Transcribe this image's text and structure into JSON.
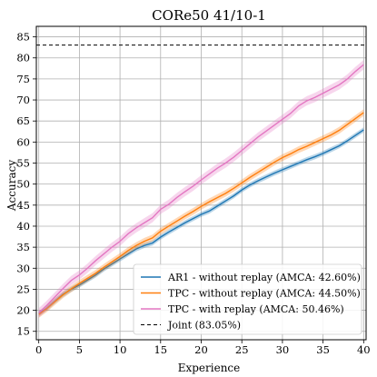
{
  "chart_data": {
    "type": "line",
    "title": "CORe50 41/10-1",
    "xlabel": "Experience",
    "ylabel": "Accuracy",
    "xlim": [
      -0.3,
      40.3
    ],
    "ylim": [
      13,
      87.5
    ],
    "xticks": [
      0,
      5,
      10,
      15,
      20,
      25,
      30,
      35,
      40
    ],
    "yticks": [
      15,
      20,
      25,
      30,
      35,
      40,
      45,
      50,
      55,
      60,
      65,
      70,
      75,
      80,
      85
    ],
    "grid": true,
    "legend_position": "lower-right",
    "series": [
      {
        "name": "AR1 - without replay (AMCA: 42.60%)",
        "color": "#1f77b4",
        "band": 0.6,
        "x": [
          0,
          1,
          2,
          3,
          4,
          5,
          6,
          7,
          8,
          9,
          10,
          11,
          12,
          13,
          14,
          15,
          16,
          17,
          18,
          19,
          20,
          21,
          22,
          23,
          24,
          25,
          26,
          27,
          28,
          29,
          30,
          31,
          32,
          33,
          34,
          35,
          36,
          37,
          38,
          39,
          40
        ],
        "y": [
          19.2,
          20.5,
          22.2,
          23.8,
          25.0,
          26.0,
          27.2,
          28.4,
          29.8,
          31.0,
          32.2,
          33.4,
          34.6,
          35.4,
          36.0,
          37.4,
          38.6,
          39.7,
          40.8,
          41.8,
          42.8,
          43.6,
          44.8,
          46.0,
          47.2,
          48.6,
          49.8,
          50.8,
          51.7,
          52.6,
          53.4,
          54.2,
          55.0,
          55.8,
          56.5,
          57.3,
          58.2,
          59.1,
          60.3,
          61.6,
          62.9
        ]
      },
      {
        "name": "TPC - without replay (AMCA: 44.50%)",
        "color": "#ff7f0e",
        "band": 0.8,
        "x": [
          0,
          1,
          2,
          3,
          4,
          5,
          6,
          7,
          8,
          9,
          10,
          11,
          12,
          13,
          14,
          15,
          16,
          17,
          18,
          19,
          20,
          21,
          22,
          23,
          24,
          25,
          26,
          27,
          28,
          29,
          30,
          31,
          32,
          33,
          34,
          35,
          36,
          37,
          38,
          39,
          40
        ],
        "y": [
          19.0,
          20.4,
          22.1,
          23.7,
          25.1,
          26.4,
          27.6,
          28.8,
          30.2,
          31.5,
          32.8,
          34.2,
          35.4,
          36.4,
          37.2,
          38.8,
          40.0,
          41.2,
          42.4,
          43.5,
          44.7,
          45.8,
          46.8,
          47.8,
          49.0,
          50.3,
          51.6,
          52.8,
          54.0,
          55.2,
          56.3,
          57.2,
          58.2,
          59.0,
          59.9,
          60.8,
          61.7,
          62.8,
          64.2,
          65.6,
          67.0
        ]
      },
      {
        "name": "TPC - with replay (AMCA: 50.46%)",
        "color": "#e377c2",
        "band": 1.1,
        "x": [
          0,
          1,
          2,
          3,
          4,
          5,
          6,
          7,
          8,
          9,
          10,
          11,
          12,
          13,
          14,
          15,
          16,
          17,
          18,
          19,
          20,
          21,
          22,
          23,
          24,
          25,
          26,
          27,
          28,
          29,
          30,
          31,
          32,
          33,
          34,
          35,
          36,
          37,
          38,
          39,
          40
        ],
        "y": [
          19.4,
          21.2,
          23.2,
          25.2,
          27.1,
          28.4,
          30.0,
          31.8,
          33.4,
          35.0,
          36.4,
          38.2,
          39.6,
          40.8,
          42.0,
          44.0,
          45.2,
          46.8,
          48.2,
          49.5,
          51.0,
          52.4,
          53.8,
          55.0,
          56.4,
          58.0,
          59.6,
          61.2,
          62.6,
          64.0,
          65.4,
          66.8,
          68.6,
          69.8,
          70.6,
          71.6,
          72.6,
          73.6,
          75.0,
          76.8,
          78.4
        ]
      }
    ],
    "reference_line": {
      "name": "Joint (83.05%)",
      "y": 83.05,
      "color": "#000000",
      "style": "dashed"
    }
  }
}
